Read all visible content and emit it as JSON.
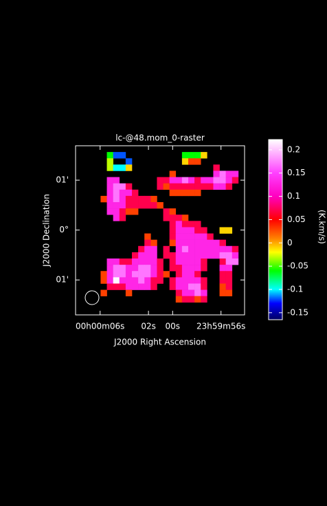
{
  "chart_data": {
    "type": "heatmap",
    "title": "lc-@48.mom_0-raster",
    "xlabel": "J2000 Right Ascension",
    "ylabel": "J2000 Declination",
    "colorbar_label": "(K.km/s)",
    "xlim": [
      8.03,
      -5.95
    ],
    "xticks": [
      {
        "value": 6,
        "label": "00h00m06s"
      },
      {
        "value": 2,
        "label": "02s"
      },
      {
        "value": 0,
        "label": "00s"
      },
      {
        "value": -4,
        "label": "23h59m56s"
      }
    ],
    "ylim": [
      -1.7,
      1.69
    ],
    "yticks": [
      {
        "value": 1,
        "label": "01'"
      },
      {
        "value": 0,
        "label": "0°"
      },
      {
        "value": -1,
        "label": "01'"
      }
    ],
    "clim": [
      -0.165,
      0.222
    ],
    "cticks": [
      0.2,
      0.15,
      0.1,
      0.05,
      0,
      -0.05,
      -0.1,
      -0.15
    ],
    "colormap": [
      {
        "value": -0.165,
        "color": "#000060"
      },
      {
        "value": -0.13,
        "color": "#0000ff"
      },
      {
        "value": -0.1,
        "color": "#00ffff"
      },
      {
        "value": -0.06,
        "color": "#00ff00"
      },
      {
        "value": -0.02,
        "color": "#ffff00"
      },
      {
        "value": 0.01,
        "color": "#ff8000"
      },
      {
        "value": 0.05,
        "color": "#ff0000"
      },
      {
        "value": 0.1,
        "color": "#ff00c0"
      },
      {
        "value": 0.15,
        "color": "#ff40ff"
      },
      {
        "value": 0.222,
        "color": "#ffffff"
      }
    ],
    "z": [
      [
        null,
        null,
        null,
        null,
        null,
        null,
        null,
        null,
        null,
        null,
        null,
        null,
        null,
        null,
        null,
        null,
        null,
        null,
        null,
        null,
        null,
        null,
        null,
        null,
        null,
        null,
        null
      ],
      [
        null,
        null,
        null,
        null,
        null,
        -0.06,
        -0.12,
        -0.12,
        null,
        null,
        null,
        null,
        null,
        null,
        null,
        null,
        null,
        -0.06,
        -0.06,
        -0.06,
        -0.01,
        null,
        null,
        null,
        null,
        null,
        null
      ],
      [
        null,
        null,
        null,
        null,
        null,
        -0.03,
        null,
        null,
        -0.12,
        null,
        null,
        null,
        null,
        null,
        null,
        null,
        null,
        -0.01,
        0.03,
        0.03,
        null,
        null,
        null,
        null,
        null,
        null,
        null
      ],
      [
        null,
        null,
        null,
        null,
        null,
        -0.03,
        -0.1,
        -0.1,
        -0.01,
        null,
        null,
        null,
        null,
        null,
        null,
        null,
        null,
        null,
        null,
        null,
        null,
        null,
        0.07,
        null,
        null,
        null,
        null
      ],
      [
        null,
        null,
        null,
        null,
        null,
        null,
        null,
        null,
        null,
        null,
        null,
        null,
        null,
        null,
        null,
        0.03,
        null,
        null,
        null,
        null,
        null,
        null,
        0.13,
        0.17,
        0.13,
        0.13,
        null
      ],
      [
        null,
        null,
        null,
        null,
        null,
        0.13,
        0.13,
        null,
        null,
        null,
        null,
        null,
        null,
        0.07,
        0.07,
        0.13,
        0.13,
        0.17,
        0.13,
        0.07,
        0.13,
        0.13,
        0.17,
        0.17,
        0.13,
        0.07,
        null
      ],
      [
        null,
        null,
        null,
        null,
        null,
        0.13,
        0.17,
        0.17,
        0.07,
        null,
        null,
        null,
        null,
        0.07,
        0.03,
        0.07,
        0.07,
        0.07,
        0.07,
        0.07,
        0.07,
        0.07,
        0.13,
        0.13,
        0.07,
        null,
        null
      ],
      [
        null,
        null,
        null,
        null,
        null,
        0.13,
        0.17,
        0.13,
        0.13,
        0.07,
        null,
        null,
        null,
        null,
        null,
        0.03,
        0.03,
        0.03,
        0.03,
        0.03,
        null,
        null,
        null,
        null,
        null,
        null,
        null
      ],
      [
        null,
        null,
        null,
        null,
        0.03,
        0.13,
        0.17,
        0.13,
        0.07,
        0.07,
        0.07,
        0.07,
        0.03,
        null,
        null,
        null,
        null,
        null,
        null,
        null,
        null,
        null,
        null,
        null,
        null,
        null,
        null
      ],
      [
        null,
        null,
        null,
        null,
        null,
        0.13,
        0.13,
        0.13,
        0.07,
        0.07,
        0.07,
        0.07,
        0.07,
        0.03,
        null,
        null,
        null,
        null,
        null,
        null,
        null,
        null,
        null,
        null,
        null,
        null,
        null
      ],
      [
        null,
        null,
        null,
        null,
        null,
        0.13,
        0.13,
        0.07,
        0.03,
        0.03,
        null,
        null,
        null,
        null,
        0.07,
        0.03,
        null,
        null,
        null,
        null,
        null,
        null,
        null,
        null,
        null,
        null,
        null
      ],
      [
        null,
        null,
        null,
        null,
        null,
        null,
        0.13,
        0.07,
        null,
        null,
        null,
        null,
        null,
        null,
        0.07,
        0.07,
        0.07,
        0.03,
        null,
        null,
        null,
        null,
        null,
        null,
        null,
        null,
        null
      ],
      [
        null,
        null,
        null,
        null,
        null,
        null,
        null,
        null,
        null,
        null,
        null,
        null,
        null,
        null,
        null,
        0.07,
        0.13,
        0.07,
        0.07,
        0.07,
        null,
        null,
        null,
        null,
        null,
        null,
        null
      ],
      [
        null,
        null,
        null,
        null,
        null,
        null,
        null,
        null,
        null,
        null,
        null,
        null,
        null,
        null,
        null,
        0.07,
        0.13,
        0.13,
        0.13,
        0.07,
        0.07,
        null,
        null,
        -0.01,
        -0.01,
        null,
        null
      ],
      [
        null,
        null,
        null,
        null,
        null,
        null,
        null,
        null,
        null,
        null,
        null,
        0.03,
        null,
        null,
        null,
        0.07,
        0.13,
        0.13,
        0.13,
        0.13,
        0.13,
        0.07,
        null,
        null,
        null,
        null,
        null
      ],
      [
        null,
        null,
        null,
        null,
        null,
        null,
        null,
        null,
        null,
        null,
        null,
        0.07,
        0.03,
        null,
        null,
        0.03,
        0.13,
        0.13,
        0.13,
        0.13,
        0.13,
        0.13,
        0.13,
        0.07,
        null,
        null,
        null
      ],
      [
        null,
        null,
        null,
        null,
        null,
        null,
        null,
        null,
        null,
        null,
        0.07,
        0.13,
        0.13,
        null,
        0.07,
        null,
        0.13,
        0.17,
        0.13,
        0.13,
        0.13,
        0.13,
        0.13,
        0.13,
        0.13,
        0.07,
        null
      ],
      [
        null,
        null,
        null,
        null,
        null,
        null,
        null,
        null,
        null,
        0.07,
        0.13,
        0.13,
        0.13,
        null,
        0.07,
        0.07,
        0.13,
        0.13,
        0.13,
        0.13,
        0.13,
        0.13,
        0.13,
        0.17,
        0.17,
        0.13,
        null
      ],
      [
        null,
        null,
        null,
        null,
        null,
        0.13,
        0.13,
        0.07,
        0.07,
        0.13,
        0.13,
        0.13,
        0.13,
        0.07,
        null,
        0.07,
        0.13,
        0.13,
        0.13,
        0.13,
        0.07,
        null,
        null,
        0.07,
        0.17,
        0.17,
        null
      ],
      [
        null,
        null,
        null,
        null,
        null,
        0.13,
        0.17,
        0.17,
        0.13,
        0.13,
        0.17,
        0.17,
        0.13,
        0.07,
        null,
        0.07,
        0.07,
        0.13,
        0.13,
        0.13,
        0.07,
        null,
        null,
        0.13,
        0.13,
        null,
        null
      ],
      [
        null,
        null,
        null,
        null,
        0.03,
        0.13,
        0.17,
        0.17,
        0.13,
        0.17,
        0.17,
        0.17,
        0.13,
        0.07,
        0.03,
        null,
        0.07,
        0.13,
        0.13,
        0.07,
        null,
        null,
        null,
        0.07,
        0.07,
        null,
        null
      ],
      [
        null,
        null,
        null,
        null,
        0.03,
        0.13,
        0.22,
        0.13,
        0.13,
        0.13,
        0.17,
        0.13,
        0.07,
        0.07,
        null,
        0.07,
        0.13,
        0.13,
        0.13,
        0.13,
        0.07,
        null,
        null,
        0.07,
        0.07,
        null,
        null
      ],
      [
        null,
        null,
        null,
        null,
        null,
        0.07,
        0.07,
        0.07,
        0.13,
        0.13,
        0.13,
        0.13,
        0.07,
        null,
        null,
        0.07,
        0.13,
        0.13,
        0.17,
        0.17,
        0.07,
        null,
        null,
        0.03,
        0.07,
        null,
        null
      ],
      [
        null,
        null,
        null,
        null,
        0.03,
        null,
        null,
        null,
        0.03,
        null,
        null,
        null,
        null,
        null,
        null,
        null,
        0.07,
        0.13,
        0.13,
        0.17,
        0.13,
        null,
        null,
        0.03,
        0.03,
        null,
        null
      ],
      [
        null,
        null,
        null,
        null,
        null,
        null,
        null,
        null,
        null,
        null,
        null,
        null,
        null,
        null,
        null,
        null,
        0.03,
        0.07,
        0.07,
        0.03,
        0.07,
        null,
        null,
        null,
        null,
        null,
        null
      ],
      [
        null,
        null,
        null,
        null,
        null,
        null,
        null,
        null,
        null,
        null,
        null,
        null,
        null,
        null,
        null,
        null,
        null,
        null,
        null,
        null,
        null,
        null,
        null,
        null,
        null,
        null,
        null
      ],
      [
        null,
        null,
        null,
        null,
        null,
        null,
        null,
        null,
        null,
        null,
        null,
        null,
        null,
        null,
        null,
        null,
        null,
        null,
        null,
        null,
        null,
        null,
        null,
        null,
        null,
        null,
        null
      ]
    ]
  }
}
